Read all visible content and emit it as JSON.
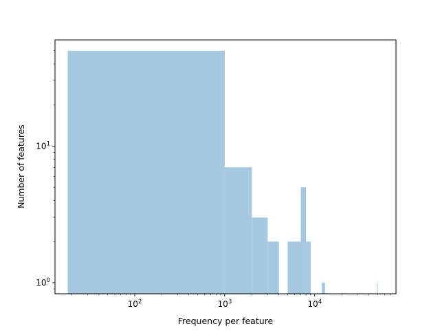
{
  "chart_data": {
    "type": "bar",
    "title": "",
    "xlabel": "Frequency per feature",
    "ylabel": "Number of features",
    "xscale": "log",
    "yscale": "log",
    "xlim": [
      13,
      80000
    ],
    "ylim": [
      0.83,
      60
    ],
    "grid": false,
    "bar_color": "#a6c8e0",
    "x_ticks": [
      {
        "value": 100,
        "base": "10",
        "exp": "2"
      },
      {
        "value": 1000,
        "base": "10",
        "exp": "3"
      },
      {
        "value": 10000,
        "base": "10",
        "exp": "4"
      }
    ],
    "y_ticks": [
      {
        "value": 1,
        "base": "10",
        "exp": "0"
      },
      {
        "value": 10,
        "base": "10",
        "exp": "1"
      }
    ],
    "bins": [
      {
        "x0": 18,
        "x1": 1000,
        "count": 50
      },
      {
        "x0": 1000,
        "x1": 2000,
        "count": 7
      },
      {
        "x0": 2000,
        "x1": 3000,
        "count": 3
      },
      {
        "x0": 3000,
        "x1": 4000,
        "count": 2
      },
      {
        "x0": 5000,
        "x1": 7000,
        "count": 2
      },
      {
        "x0": 7000,
        "x1": 8000,
        "count": 5
      },
      {
        "x0": 8000,
        "x1": 9000,
        "count": 2
      },
      {
        "x0": 12000,
        "x1": 13000,
        "count": 1
      },
      {
        "x0": 49000,
        "x1": 50000,
        "count": 1
      }
    ]
  }
}
